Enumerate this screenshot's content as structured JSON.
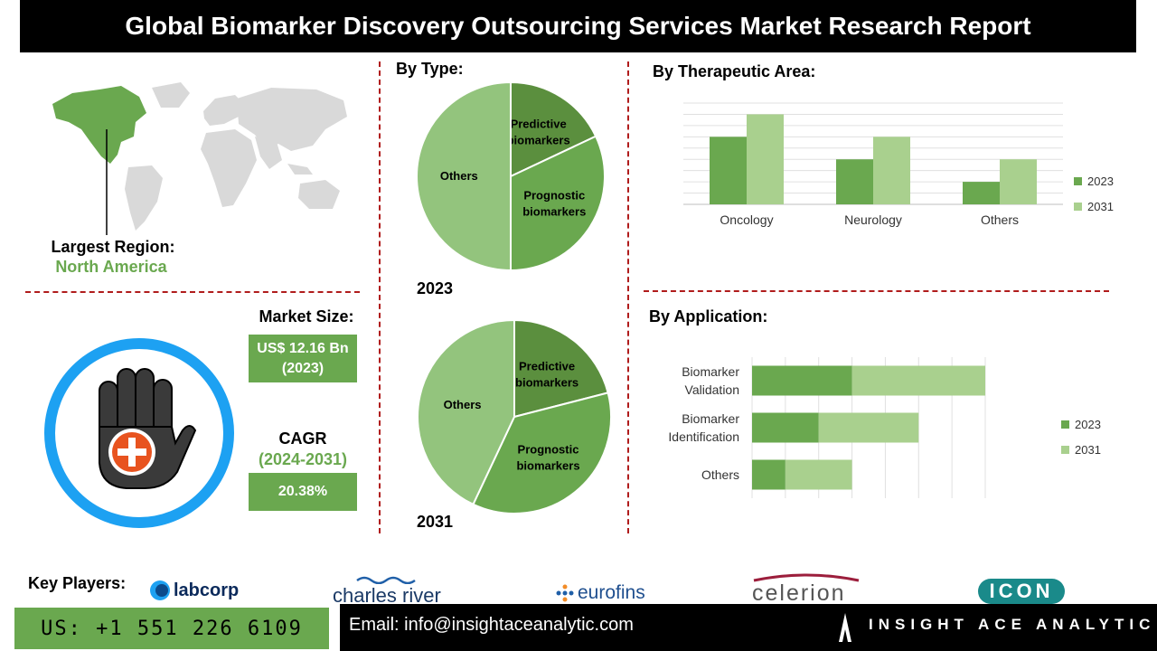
{
  "title": "Global Biomarker Discovery Outsourcing Services Market Research Report",
  "region": {
    "label": "Largest Region:",
    "value": "North America"
  },
  "market_size": {
    "label": "Market Size:",
    "value_line1": "US$ 12.16 Bn",
    "value_line2": "(2023)"
  },
  "cagr": {
    "label": "CAGR",
    "period": "(2024-2031)",
    "value": "20.38%"
  },
  "by_type": {
    "title": "By Type:",
    "year_a": "2023",
    "year_b": "2031"
  },
  "by_therapeutic": {
    "title": "By Therapeutic Area:"
  },
  "by_application": {
    "title": "By Application:"
  },
  "key_players": {
    "label": "Key Players:",
    "names": [
      "labcorp",
      "charles river",
      "eurofins",
      "celerion",
      "ICON"
    ]
  },
  "footer": {
    "phone": "US: +1 551 226 6109",
    "email": "Email: info@insightaceanalytic.com",
    "brand": "INSIGHT ACE ANALYTIC"
  },
  "colors": {
    "green": "#6aa84f",
    "green_dark": "#5b8f3e",
    "green_light": "#a9d08e",
    "blue_ring": "#1da1f2",
    "red": "#e8531f"
  },
  "chart_data": [
    {
      "type": "pie",
      "title": "2023",
      "labels": [
        "Predictive biomarkers",
        "Prognostic biomarkers",
        "Others"
      ],
      "values": [
        18,
        32,
        50
      ],
      "colors": [
        "#5b8f3e",
        "#6aa84f",
        "#93c47d"
      ]
    },
    {
      "type": "pie",
      "title": "2031",
      "labels": [
        "Predictive biomarkers",
        "Prognostic biomarkers",
        "Others"
      ],
      "values": [
        21,
        36,
        43
      ],
      "colors": [
        "#5b8f3e",
        "#6aa84f",
        "#93c47d"
      ]
    },
    {
      "type": "bar",
      "categories": [
        "Oncology",
        "Neurology",
        "Others"
      ],
      "series": [
        {
          "name": "2023",
          "values": [
            3,
            2,
            1
          ],
          "color": "#6aa84f"
        },
        {
          "name": "2031",
          "values": [
            4,
            3,
            2
          ],
          "color": "#a9d08e"
        }
      ],
      "ylim": [
        0,
        4.5
      ],
      "legend": "right"
    },
    {
      "type": "bar",
      "orientation": "horizontal",
      "stacked": true,
      "categories": [
        "Biomarker Validation",
        "Biomarker Identification",
        "Others"
      ],
      "series": [
        {
          "name": "2023",
          "values": [
            1.5,
            1.0,
            0.5
          ],
          "color": "#6aa84f"
        },
        {
          "name": "2031",
          "values": [
            2.0,
            1.5,
            1.0
          ],
          "color": "#a9d08e"
        }
      ],
      "xlim": [
        0,
        3.5
      ],
      "legend": "right"
    }
  ]
}
